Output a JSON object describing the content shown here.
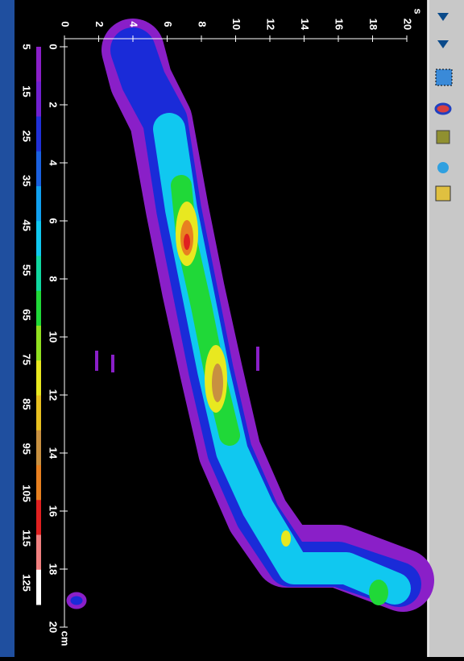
{
  "time_axis": {
    "unit": "s",
    "ticks": [
      0,
      2,
      4,
      6,
      8,
      10,
      12,
      14,
      16,
      18,
      20
    ]
  },
  "depth_axis": {
    "unit": "cm",
    "ticks": [
      0,
      2,
      4,
      6,
      8,
      10,
      12,
      14,
      16,
      18,
      20
    ]
  },
  "colorbar": {
    "labels": [
      5,
      15,
      25,
      35,
      45,
      55,
      65,
      75,
      85,
      95,
      105,
      115,
      125
    ]
  }
}
